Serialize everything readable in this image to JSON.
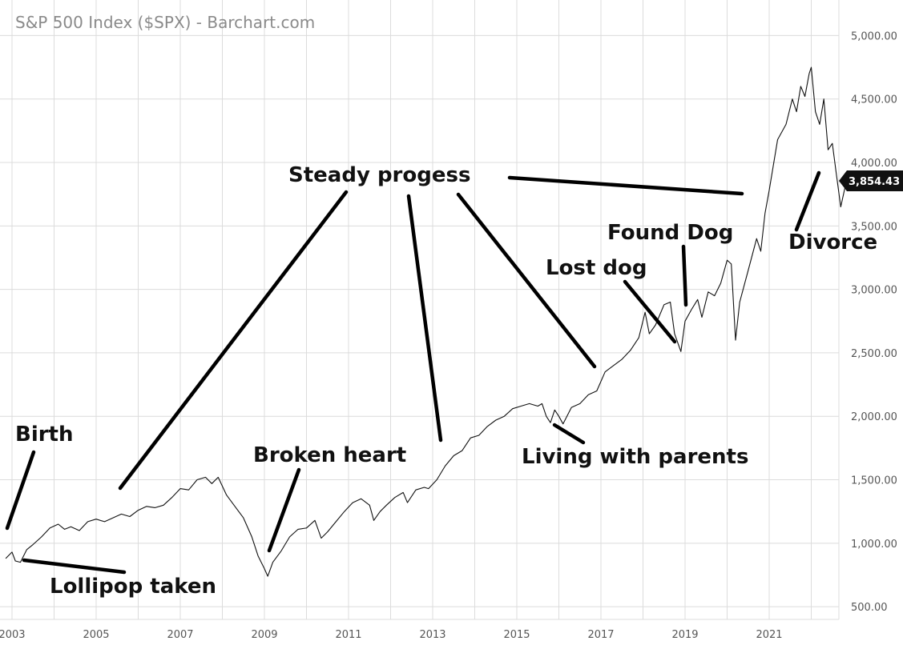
{
  "header": {
    "title": "S&P 500 Index ($SPX) - Barchart.com"
  },
  "last_price_label": "3,854.43",
  "colors": {
    "line": "#111111",
    "grid": "#dcdcdc",
    "badge": "#111111",
    "annotation": "#000000"
  },
  "chart_data": {
    "type": "line",
    "title": "S&P 500 Index ($SPX) - Barchart.com",
    "xlabel": "",
    "ylabel": "",
    "xlim": [
      2003.0,
      2022.85
    ],
    "ylim": [
      400,
      5280
    ],
    "grid": true,
    "y_axis_position": "right",
    "x_ticks": [
      "2003",
      "2005",
      "2007",
      "2009",
      "2011",
      "2013",
      "2015",
      "2017",
      "2019",
      "2021"
    ],
    "y_ticks": [
      "500.00",
      "1,000.00",
      "1,500.00",
      "2,000.00",
      "2,500.00",
      "3,000.00",
      "3,500.00",
      "4,000.00",
      "4,500.00",
      "5,000.00"
    ],
    "last_value": 3854.43,
    "series": [
      {
        "x": [
          2002.85,
          2003.0,
          2003.08,
          2003.2,
          2003.35,
          2003.5,
          2003.7,
          2003.9,
          2004.1,
          2004.25,
          2004.4,
          2004.6,
          2004.8,
          2005.0,
          2005.2,
          2005.4,
          2005.6,
          2005.8,
          2006.0,
          2006.2,
          2006.4,
          2006.6,
          2006.8,
          2007.0,
          2007.2,
          2007.4,
          2007.6,
          2007.75,
          2007.9,
          2008.1,
          2008.3,
          2008.5,
          2008.7,
          2008.85,
          2009.0,
          2009.08,
          2009.2,
          2009.4,
          2009.6,
          2009.8,
          2010.0,
          2010.2,
          2010.35,
          2010.5,
          2010.7,
          2010.9,
          2011.1,
          2011.3,
          2011.5,
          2011.6,
          2011.75,
          2011.9,
          2012.1,
          2012.3,
          2012.4,
          2012.6,
          2012.8,
          2012.9,
          2013.1,
          2013.3,
          2013.5,
          2013.7,
          2013.9,
          2014.1,
          2014.3,
          2014.5,
          2014.7,
          2014.9,
          2015.1,
          2015.3,
          2015.5,
          2015.6,
          2015.7,
          2015.8,
          2015.9,
          2016.0,
          2016.1,
          2016.3,
          2016.5,
          2016.7,
          2016.9,
          2017.1,
          2017.3,
          2017.5,
          2017.7,
          2017.9,
          2018.05,
          2018.15,
          2018.3,
          2018.5,
          2018.65,
          2018.75,
          2018.9,
          2019.0,
          2019.15,
          2019.3,
          2019.4,
          2019.55,
          2019.7,
          2019.85,
          2020.0,
          2020.1,
          2020.2,
          2020.3,
          2020.5,
          2020.7,
          2020.8,
          2020.9,
          2021.0,
          2021.2,
          2021.4,
          2021.55,
          2021.65,
          2021.75,
          2021.85,
          2021.95,
          2022.0,
          2022.1,
          2022.2,
          2022.3,
          2022.4,
          2022.5,
          2022.6,
          2022.7,
          2022.8,
          2022.85
        ],
        "y": [
          880,
          930,
          860,
          850,
          950,
          990,
          1050,
          1120,
          1150,
          1110,
          1130,
          1100,
          1170,
          1190,
          1170,
          1200,
          1230,
          1210,
          1260,
          1290,
          1280,
          1300,
          1360,
          1430,
          1420,
          1500,
          1520,
          1470,
          1520,
          1380,
          1290,
          1200,
          1050,
          900,
          800,
          740,
          850,
          940,
          1050,
          1110,
          1120,
          1180,
          1040,
          1090,
          1170,
          1250,
          1320,
          1350,
          1300,
          1180,
          1250,
          1300,
          1360,
          1400,
          1320,
          1420,
          1440,
          1430,
          1500,
          1610,
          1690,
          1730,
          1830,
          1850,
          1920,
          1970,
          2000,
          2060,
          2080,
          2100,
          2080,
          2100,
          2000,
          1950,
          2050,
          2000,
          1940,
          2070,
          2100,
          2170,
          2200,
          2350,
          2400,
          2450,
          2520,
          2620,
          2820,
          2650,
          2720,
          2880,
          2900,
          2650,
          2510,
          2750,
          2840,
          2920,
          2780,
          2980,
          2950,
          3050,
          3230,
          3200,
          2600,
          2900,
          3150,
          3400,
          3300,
          3600,
          3780,
          4180,
          4300,
          4500,
          4400,
          4600,
          4520,
          4700,
          4750,
          4400,
          4300,
          4500,
          4100,
          4150,
          3900,
          3650,
          3800,
          3854.43
        ]
      }
    ],
    "annotations": [
      {
        "text": "Birth"
      },
      {
        "text": "Lollipop taken"
      },
      {
        "text": "Steady progess"
      },
      {
        "text": "Broken heart"
      },
      {
        "text": "Lost dog"
      },
      {
        "text": "Found Dog"
      },
      {
        "text": "Living with parents"
      },
      {
        "text": "Divorce"
      }
    ]
  }
}
